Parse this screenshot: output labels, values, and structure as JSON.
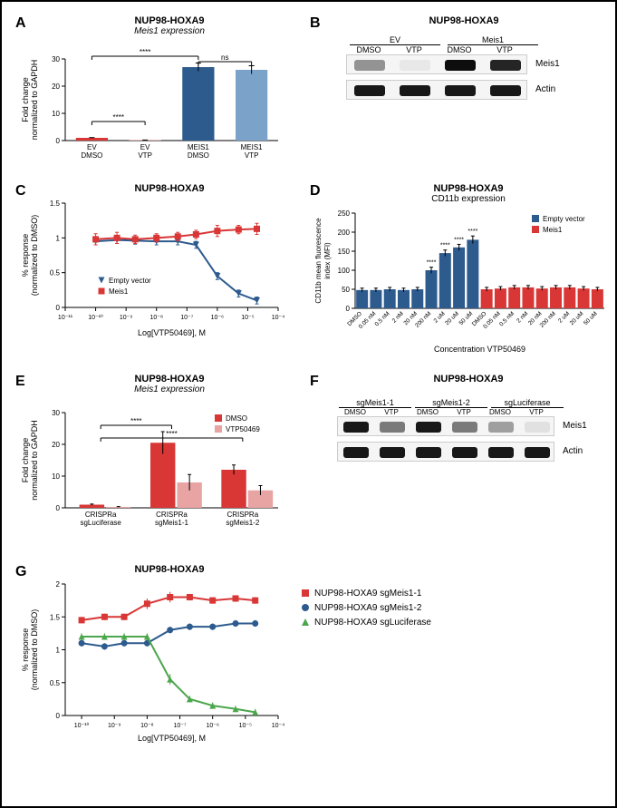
{
  "panelA": {
    "label": "A",
    "title": "NUP98-HOXA9",
    "subtitle": "Meis1 expression",
    "ylabel": "Fold change\nnormalized to GAPDH",
    "ylim": [
      0,
      30
    ],
    "yticks": [
      0,
      10,
      20,
      30
    ],
    "categories": [
      "EV\nDMSO",
      "EV\nVTP",
      "MEIS1\nDMSO",
      "MEIS1\nVTP"
    ],
    "values": [
      1.0,
      0.15,
      27,
      26
    ],
    "errors": [
      0.1,
      0.05,
      1.5,
      1.5
    ],
    "colors": [
      "#d93636",
      "#e88a8a",
      "#2d5b8e",
      "#7ba3c9"
    ],
    "sigs": [
      {
        "from": 0,
        "to": 1,
        "label": "****",
        "y": 7
      },
      {
        "from": 0,
        "to": 2,
        "label": "****",
        "y": 31
      },
      {
        "from": 2,
        "to": 3,
        "label": "ns",
        "y": 29
      }
    ]
  },
  "panelB": {
    "label": "B",
    "title": "NUP98-HOXA9",
    "groups": [
      "EV",
      "Meis1"
    ],
    "lanes": [
      "DMSO",
      "VTP",
      "DMSO",
      "VTP"
    ],
    "rows": [
      "Meis1",
      "Actin"
    ],
    "intensities": {
      "Meis1": [
        0.4,
        0.05,
        0.95,
        0.85
      ],
      "Actin": [
        0.9,
        0.9,
        0.9,
        0.9
      ]
    }
  },
  "panelC": {
    "label": "C",
    "title": "NUP98-HOXA9",
    "ylabel": "% response\n(normalized to DMSO)",
    "xlabel": "Log[VTP50469], M",
    "ylim": [
      0,
      1.5
    ],
    "yticks": [
      0,
      0.5,
      1.0,
      1.5
    ],
    "xlim": [
      -11,
      -4
    ],
    "xticks": [
      -11,
      -10,
      -9,
      -8,
      -7,
      -6,
      -5,
      -4
    ],
    "xticklabels": [
      "10⁻¹¹",
      "10⁻¹⁰",
      "10⁻⁹",
      "10⁻⁸",
      "10⁻⁷",
      "10⁻⁶",
      "10⁻⁵",
      "10⁻⁴"
    ],
    "series": [
      {
        "name": "Empty vector",
        "color": "#2d5b8e",
        "marker": "triangle-down",
        "x": [
          -10,
          -9.3,
          -8.7,
          -8,
          -7.3,
          -6.7,
          -6,
          -5.3,
          -4.7
        ],
        "y": [
          0.95,
          0.97,
          0.96,
          0.95,
          0.95,
          0.9,
          0.45,
          0.2,
          0.1
        ],
        "err": [
          0.05,
          0.05,
          0.05,
          0.05,
          0.05,
          0.05,
          0.05,
          0.05,
          0.05
        ]
      },
      {
        "name": "Meis1",
        "color": "#d93636",
        "marker": "square",
        "x": [
          -10,
          -9.3,
          -8.7,
          -8,
          -7.3,
          -6.7,
          -6,
          -5.3,
          -4.7
        ],
        "y": [
          0.98,
          1.0,
          0.98,
          1.0,
          1.02,
          1.05,
          1.1,
          1.12,
          1.13
        ],
        "err": [
          0.08,
          0.08,
          0.06,
          0.06,
          0.06,
          0.06,
          0.08,
          0.06,
          0.08
        ]
      }
    ]
  },
  "panelD": {
    "label": "D",
    "title": "NUP98-HOXA9",
    "subtitle": "CD11b expression",
    "ylabel": "CD11b mean fluorescence\nindex (MFI)",
    "xlabel": "Concentration VTP50469",
    "ylim": [
      0,
      250
    ],
    "yticks": [
      0,
      50,
      100,
      150,
      200,
      250
    ],
    "categories": [
      "DMSO",
      "0.05 nM",
      "0.5 nM",
      "2 nM",
      "20 nM",
      "200 nM",
      "2 uM",
      "20 uM",
      "50 uM"
    ],
    "series": [
      {
        "name": "Empty vector",
        "color": "#2d5b8e",
        "values": [
          48,
          48,
          50,
          48,
          50,
          100,
          145,
          160,
          180
        ],
        "errors": [
          5,
          5,
          5,
          5,
          5,
          8,
          8,
          8,
          10
        ]
      },
      {
        "name": "Meis1",
        "color": "#d93636",
        "values": [
          50,
          52,
          55,
          55,
          52,
          55,
          55,
          52,
          50
        ],
        "errors": [
          5,
          5,
          5,
          5,
          5,
          5,
          5,
          5,
          5
        ]
      }
    ],
    "sigs": [
      {
        "group": 0,
        "idx": 5,
        "label": "****"
      },
      {
        "group": 0,
        "idx": 6,
        "label": "****"
      },
      {
        "group": 0,
        "idx": 7,
        "label": "****"
      },
      {
        "group": 0,
        "idx": 8,
        "label": "****"
      }
    ]
  },
  "panelE": {
    "label": "E",
    "title": "NUP98-HOXA9",
    "subtitle": "Meis1 expression",
    "ylabel": "Fold change\nnormalized to GAPDH",
    "ylim": [
      0,
      30
    ],
    "yticks": [
      0,
      10,
      20,
      30
    ],
    "categories": [
      "CRISPRa\nsgLuciferase",
      "CRISPRa\nsgMeis1-1",
      "CRISPRa\nsgMeis1-2"
    ],
    "series": [
      {
        "name": "DMSO",
        "color": "#d93636",
        "values": [
          1.0,
          20.5,
          12
        ],
        "errors": [
          0.2,
          3.5,
          1.5
        ]
      },
      {
        "name": "VTP50469",
        "color": "#e8a3a3",
        "values": [
          0.3,
          8,
          5.5
        ],
        "errors": [
          0.1,
          2.5,
          1.5
        ]
      }
    ],
    "sigs": [
      {
        "from": 0,
        "to": 1,
        "label": "****",
        "y": 26
      },
      {
        "from": 0,
        "to": 2,
        "label": "****",
        "y": 22
      }
    ]
  },
  "panelF": {
    "label": "F",
    "title": "NUP98-HOXA9",
    "groups": [
      "sgMeis1-1",
      "sgMeis1-2",
      "sgLuciferase"
    ],
    "lanes": [
      "DMSO",
      "VTP",
      "DMSO",
      "VTP",
      "DMSO",
      "VTP"
    ],
    "rows": [
      "Meis1",
      "Actin"
    ],
    "intensities": {
      "Meis1": [
        0.9,
        0.5,
        0.9,
        0.5,
        0.35,
        0.08
      ],
      "Actin": [
        0.9,
        0.9,
        0.9,
        0.9,
        0.9,
        0.9
      ]
    }
  },
  "panelG": {
    "label": "G",
    "title": "NUP98-HOXA9",
    "ylabel": "% response\n(normalized to DMSO)",
    "xlabel": "Log[VTP50469], M",
    "ylim": [
      0,
      2.0
    ],
    "yticks": [
      0,
      0.5,
      1.0,
      1.5,
      2.0
    ],
    "xlim": [
      -10.5,
      -4
    ],
    "xticks": [
      -10,
      -9,
      -8,
      -7,
      -6,
      -5,
      -4
    ],
    "xticklabels": [
      "10⁻¹⁰",
      "10⁻⁹",
      "10⁻⁸",
      "10⁻⁷",
      "10⁻⁶",
      "10⁻⁵",
      "10⁻⁴"
    ],
    "series": [
      {
        "name": "NUP98-HOXA9 sgMeis1-1",
        "color": "#d93636",
        "marker": "square",
        "x": [
          -10,
          -9.3,
          -8.7,
          -8,
          -7.3,
          -6.7,
          -6,
          -5.3,
          -4.7
        ],
        "y": [
          1.45,
          1.5,
          1.5,
          1.7,
          1.8,
          1.8,
          1.75,
          1.78,
          1.75
        ],
        "err": [
          0.05,
          0.05,
          0.05,
          0.08,
          0.08,
          0.05,
          0.05,
          0.05,
          0.05
        ]
      },
      {
        "name": "NUP98-HOXA9 sgMeis1-2",
        "color": "#2d5b8e",
        "marker": "circle",
        "x": [
          -10,
          -9.3,
          -8.7,
          -8,
          -7.3,
          -6.7,
          -6,
          -5.3,
          -4.7
        ],
        "y": [
          1.1,
          1.05,
          1.1,
          1.1,
          1.3,
          1.35,
          1.35,
          1.4,
          1.4
        ],
        "err": [
          0.05,
          0.05,
          0.05,
          0.05,
          0.05,
          0.05,
          0.05,
          0.05,
          0.05
        ]
      },
      {
        "name": "NUP98-HOXA9 sgLuciferase",
        "color": "#4ca64c",
        "marker": "triangle",
        "x": [
          -10,
          -9.3,
          -8.7,
          -8,
          -7.3,
          -6.7,
          -6,
          -5.3,
          -4.7
        ],
        "y": [
          1.2,
          1.2,
          1.2,
          1.2,
          0.55,
          0.25,
          0.15,
          0.1,
          0.05
        ],
        "err": [
          0.05,
          0.05,
          0.05,
          0.05,
          0.08,
          0.05,
          0.05,
          0.05,
          0.05
        ]
      }
    ]
  }
}
